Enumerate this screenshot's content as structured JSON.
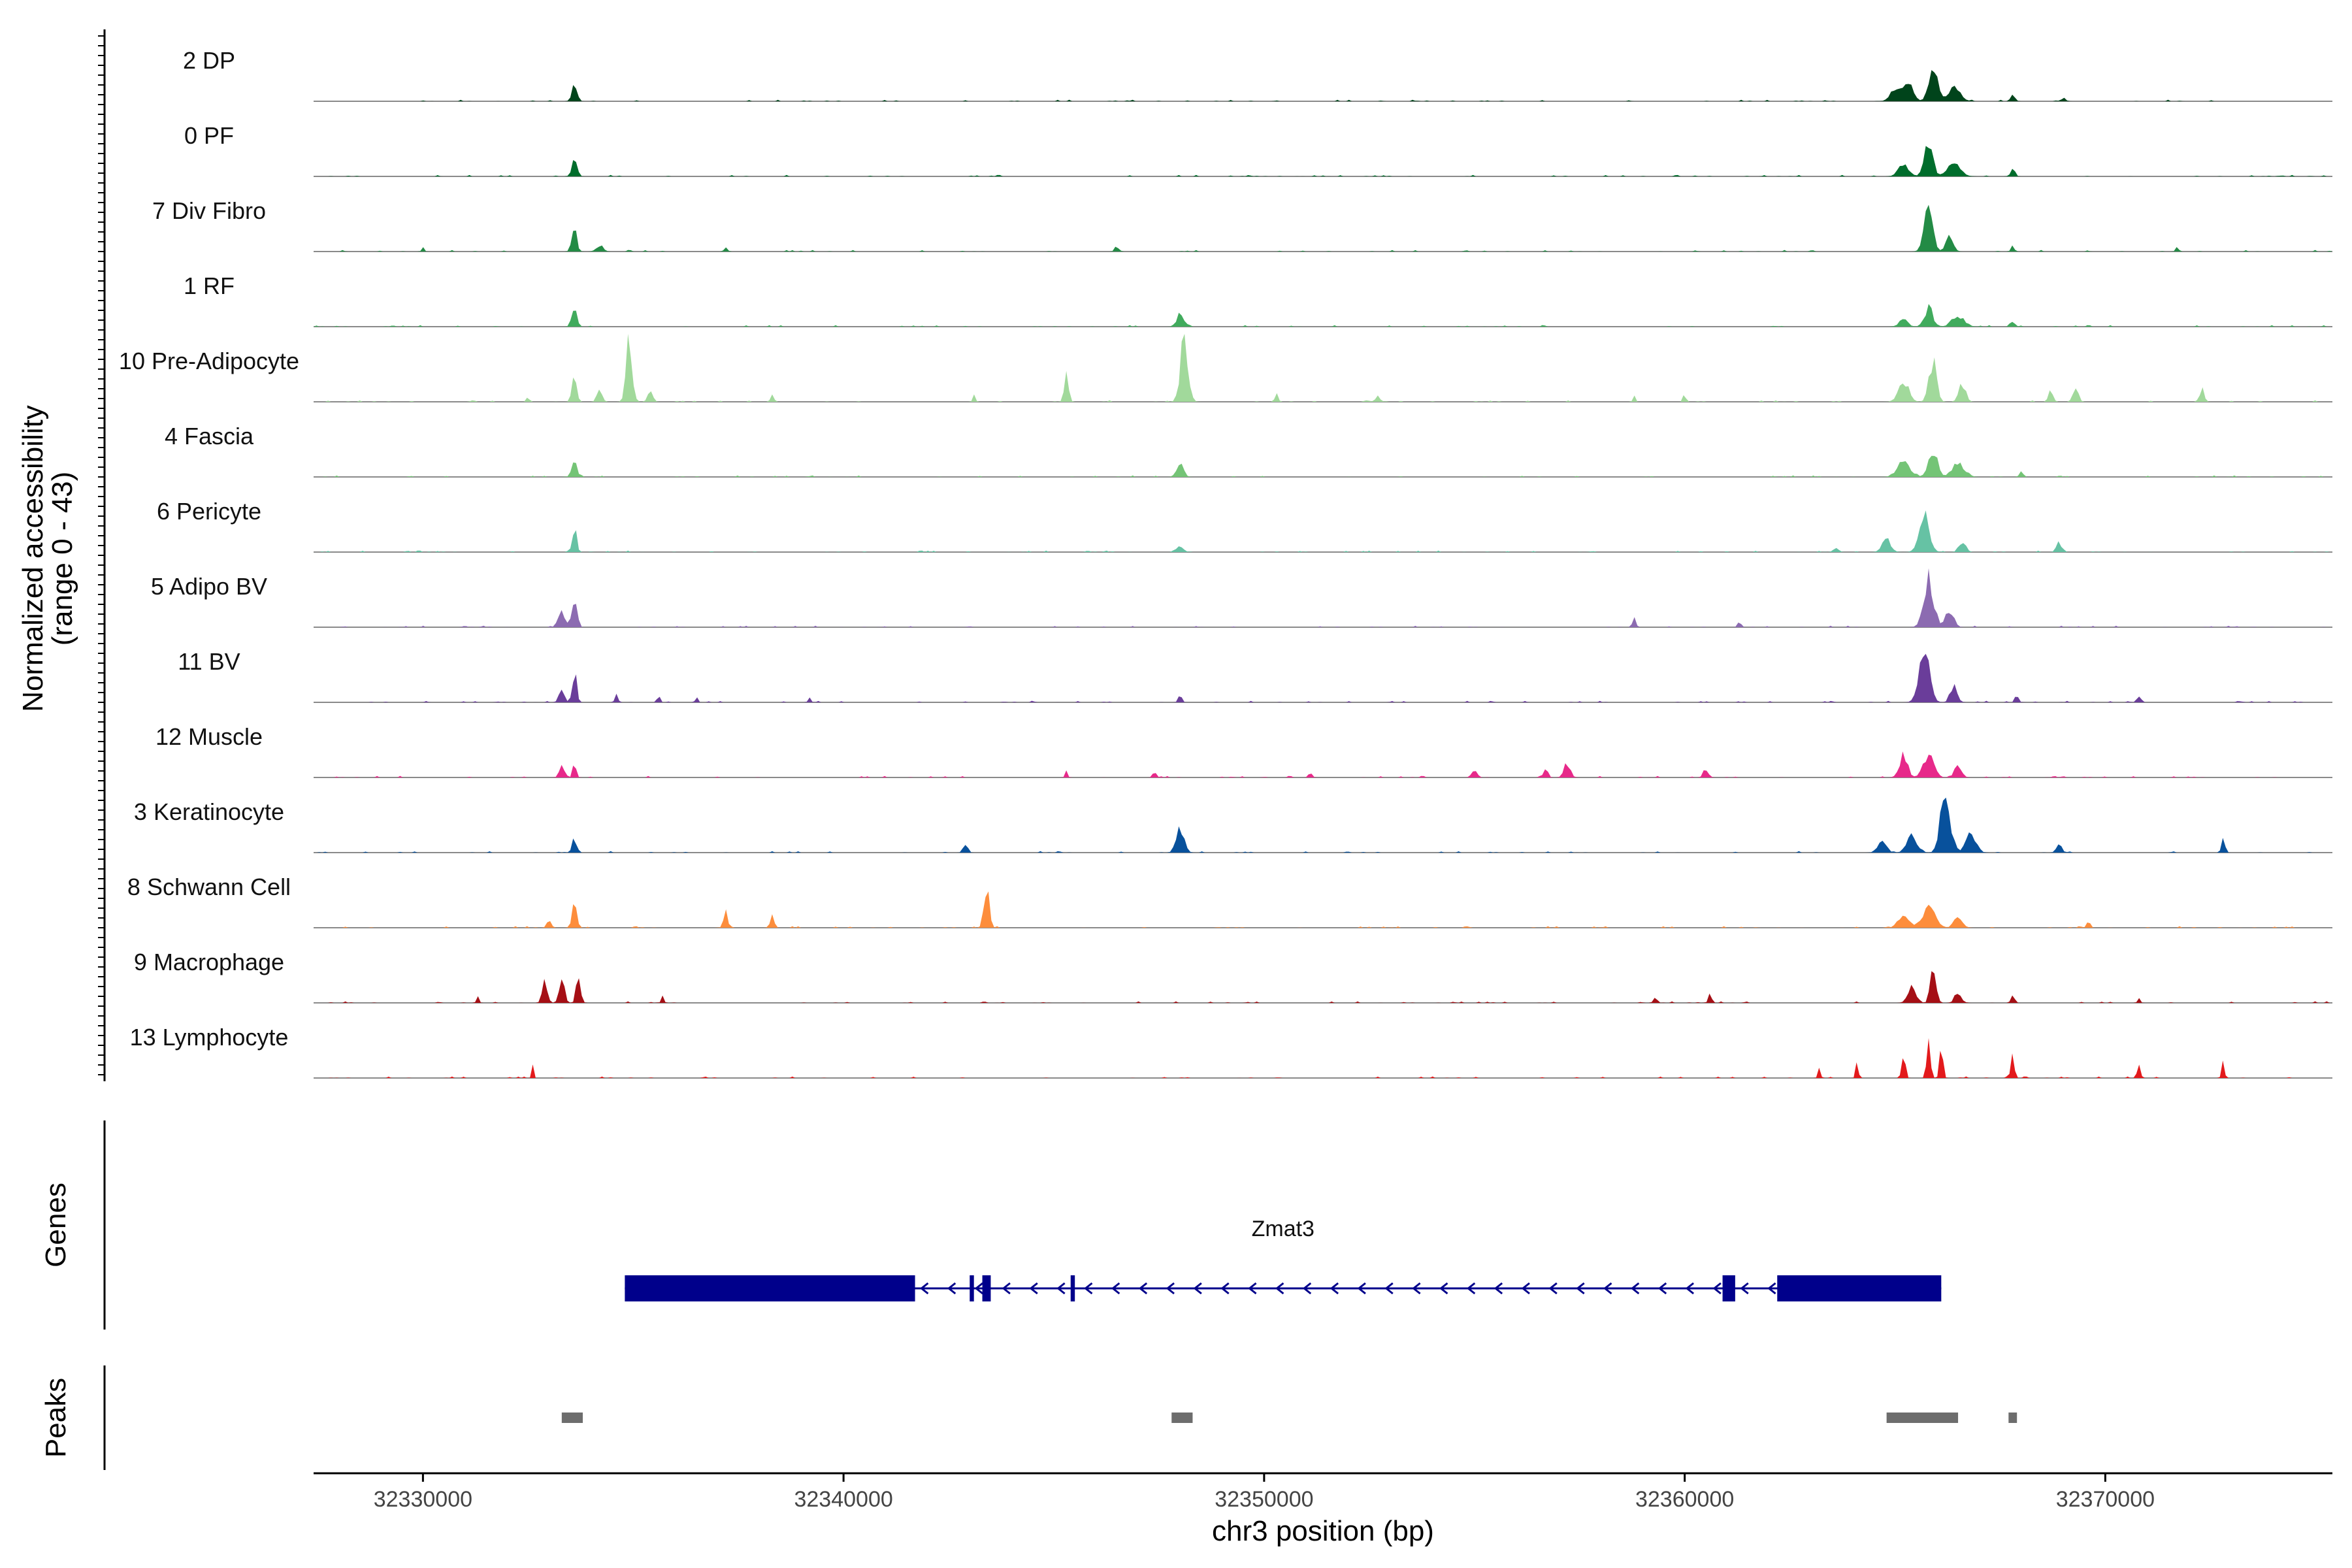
{
  "chart_data": {
    "type": "area",
    "title": "",
    "ylabel_line1": "Normalized accessibility",
    "ylabel_line2": "(range 0 - 43)",
    "y_range": [
      0,
      43
    ],
    "xlabel": "chr3 position (bp)",
    "xlim": [
      32327400,
      32375400
    ],
    "x_ticks": [
      32330000,
      32340000,
      32350000,
      32360000,
      32370000
    ],
    "x_tick_labels": [
      "32330000",
      "32340000",
      "32350000",
      "32360000",
      "32370000"
    ],
    "genes_label": "Genes",
    "peaks_label": "Peaks",
    "tracks": [
      {
        "name": "2 DP",
        "color": "#00441b",
        "peaks": [
          [
            32333600,
            60,
            0.3
          ],
          [
            32365000,
            120,
            0.2
          ],
          [
            32365300,
            120,
            0.35
          ],
          [
            32365900,
            100,
            0.65
          ],
          [
            32366400,
            150,
            0.25
          ],
          [
            32367800,
            50,
            0.12
          ],
          [
            32369000,
            60,
            0.06
          ]
        ]
      },
      {
        "name": "0 PF",
        "color": "#006d2c",
        "peaks": [
          [
            32333600,
            60,
            0.35
          ],
          [
            32365200,
            120,
            0.25
          ],
          [
            32365800,
            100,
            0.6
          ],
          [
            32366400,
            150,
            0.25
          ],
          [
            32367800,
            50,
            0.15
          ]
        ]
      },
      {
        "name": "7 Div Fibro",
        "color": "#238b45",
        "peaks": [
          [
            32330000,
            30,
            0.08
          ],
          [
            32333600,
            60,
            0.4
          ],
          [
            32334200,
            80,
            0.12
          ],
          [
            32337200,
            40,
            0.08
          ],
          [
            32346500,
            50,
            0.1
          ],
          [
            32365800,
            100,
            0.85
          ],
          [
            32366300,
            80,
            0.3
          ],
          [
            32367800,
            40,
            0.12
          ],
          [
            32371700,
            30,
            0.1
          ]
        ]
      },
      {
        "name": "1 RF",
        "color": "#41ab5d",
        "peaks": [
          [
            32333600,
            60,
            0.4
          ],
          [
            32348000,
            80,
            0.25
          ],
          [
            32365200,
            100,
            0.15
          ],
          [
            32365800,
            100,
            0.35
          ],
          [
            32366500,
            150,
            0.2
          ],
          [
            32367800,
            50,
            0.12
          ]
        ]
      },
      {
        "name": "10 Pre-Adipocyte",
        "color": "#a1d99b",
        "peaks": [
          [
            32332500,
            30,
            0.1
          ],
          [
            32333600,
            50,
            0.65
          ],
          [
            32334200,
            60,
            0.25
          ],
          [
            32334900,
            70,
            1.2
          ],
          [
            32335400,
            60,
            0.2
          ],
          [
            32338300,
            40,
            0.12
          ],
          [
            32343100,
            30,
            0.12
          ],
          [
            32345300,
            50,
            0.55
          ],
          [
            32348100,
            90,
            1.2
          ],
          [
            32350300,
            40,
            0.15
          ],
          [
            32352700,
            60,
            0.1
          ],
          [
            32358800,
            30,
            0.1
          ],
          [
            32360000,
            30,
            0.18
          ],
          [
            32365200,
            120,
            0.4
          ],
          [
            32365900,
            90,
            0.75
          ],
          [
            32366600,
            80,
            0.35
          ],
          [
            32368700,
            50,
            0.2
          ],
          [
            32369300,
            60,
            0.25
          ],
          [
            32372300,
            50,
            0.25
          ]
        ]
      },
      {
        "name": "4 Fascia",
        "color": "#74c476",
        "peaks": [
          [
            32333600,
            60,
            0.35
          ],
          [
            32348000,
            80,
            0.25
          ],
          [
            32365200,
            150,
            0.3
          ],
          [
            32365900,
            100,
            0.55
          ],
          [
            32366500,
            150,
            0.25
          ],
          [
            32368000,
            40,
            0.1
          ]
        ]
      },
      {
        "name": "6 Pericyte",
        "color": "#66c2a4",
        "peaks": [
          [
            32333600,
            50,
            0.5
          ],
          [
            32348000,
            80,
            0.1
          ],
          [
            32363600,
            60,
            0.1
          ],
          [
            32364800,
            100,
            0.25
          ],
          [
            32365700,
            120,
            0.7
          ],
          [
            32366600,
            80,
            0.2
          ],
          [
            32368900,
            60,
            0.2
          ]
        ]
      },
      {
        "name": "5 Adipo BV",
        "color": "#8c6bb1",
        "peaks": [
          [
            32333300,
            80,
            0.3
          ],
          [
            32333600,
            60,
            0.6
          ],
          [
            32358800,
            40,
            0.18
          ],
          [
            32361300,
            40,
            0.14
          ],
          [
            32365800,
            120,
            0.9
          ],
          [
            32366300,
            100,
            0.35
          ]
        ]
      },
      {
        "name": "11 BV",
        "color": "#6a3d9a",
        "peaks": [
          [
            32333300,
            60,
            0.3
          ],
          [
            32333600,
            50,
            0.6
          ],
          [
            32334600,
            40,
            0.14
          ],
          [
            32335600,
            30,
            0.14
          ],
          [
            32336500,
            30,
            0.1
          ],
          [
            32339200,
            30,
            0.1
          ],
          [
            32348000,
            40,
            0.14
          ],
          [
            32365700,
            120,
            1.0
          ],
          [
            32366400,
            80,
            0.35
          ],
          [
            32367900,
            40,
            0.15
          ],
          [
            32370800,
            40,
            0.14
          ]
        ]
      },
      {
        "name": "12 Muscle",
        "color": "#e7298a",
        "peaks": [
          [
            32333300,
            60,
            0.25
          ],
          [
            32333600,
            40,
            0.3
          ],
          [
            32345300,
            30,
            0.12
          ],
          [
            32347400,
            40,
            0.12
          ],
          [
            32351100,
            40,
            0.1
          ],
          [
            32355000,
            60,
            0.15
          ],
          [
            32356700,
            50,
            0.2
          ],
          [
            32357200,
            80,
            0.25
          ],
          [
            32360500,
            60,
            0.18
          ],
          [
            32365200,
            100,
            0.4
          ],
          [
            32365800,
            120,
            0.45
          ],
          [
            32366500,
            80,
            0.25
          ]
        ]
      },
      {
        "name": "3 Keratinocyte",
        "color": "#08519c",
        "peaks": [
          [
            32333600,
            50,
            0.3
          ],
          [
            32342900,
            50,
            0.18
          ],
          [
            32348000,
            90,
            0.5
          ],
          [
            32364700,
            100,
            0.2
          ],
          [
            32365400,
            120,
            0.3
          ],
          [
            32366200,
            110,
            1.2
          ],
          [
            32366800,
            120,
            0.35
          ],
          [
            32368900,
            60,
            0.18
          ],
          [
            32372800,
            40,
            0.3
          ]
        ]
      },
      {
        "name": "8 Schwann Cell",
        "color": "#fd8d3c",
        "peaks": [
          [
            32333600,
            60,
            0.4
          ],
          [
            32333000,
            50,
            0.18
          ],
          [
            32337200,
            50,
            0.3
          ],
          [
            32338300,
            50,
            0.2
          ],
          [
            32343400,
            60,
            0.75
          ],
          [
            32365800,
            150,
            0.4
          ],
          [
            32365200,
            120,
            0.25
          ],
          [
            32366500,
            100,
            0.2
          ],
          [
            32369600,
            40,
            0.12
          ]
        ]
      },
      {
        "name": "9 Macrophage",
        "color": "#a50f15",
        "peaks": [
          [
            32332900,
            60,
            0.4
          ],
          [
            32333300,
            60,
            0.45
          ],
          [
            32333700,
            50,
            0.55
          ],
          [
            32331300,
            30,
            0.14
          ],
          [
            32335700,
            30,
            0.15
          ],
          [
            32359300,
            40,
            0.12
          ],
          [
            32360600,
            40,
            0.16
          ],
          [
            32365900,
            60,
            0.9
          ],
          [
            32365400,
            100,
            0.3
          ],
          [
            32366500,
            80,
            0.2
          ],
          [
            32367800,
            40,
            0.15
          ],
          [
            32370800,
            30,
            0.1
          ]
        ]
      },
      {
        "name": "13 Lymphocyte",
        "color": "#e31a1c",
        "peaks": [
          [
            32332600,
            20,
            0.35
          ],
          [
            32363200,
            30,
            0.2
          ],
          [
            32364100,
            30,
            0.35
          ],
          [
            32365200,
            40,
            0.55
          ],
          [
            32365800,
            40,
            0.9
          ],
          [
            32366100,
            40,
            0.55
          ],
          [
            32367800,
            40,
            0.45
          ],
          [
            32370800,
            40,
            0.25
          ],
          [
            32372800,
            30,
            0.4
          ]
        ]
      }
    ],
    "gene": {
      "name": "Zmat3",
      "strand": "-",
      "color": "#00008b",
      "start": 32334800,
      "end": 32366100,
      "exons": [
        [
          32334800,
          32341700,
          "utr"
        ],
        [
          32343000,
          32343100,
          "cds"
        ],
        [
          32343300,
          32343500,
          "cds"
        ],
        [
          32345400,
          32345500,
          "cds"
        ],
        [
          32360900,
          32361200,
          "cds"
        ],
        [
          32362200,
          32366100,
          "utr"
        ]
      ]
    },
    "peak_regions": [
      [
        32333300,
        32333800
      ],
      [
        32347800,
        32348300
      ],
      [
        32364800,
        32366500
      ],
      [
        32367700,
        32367900
      ]
    ]
  }
}
